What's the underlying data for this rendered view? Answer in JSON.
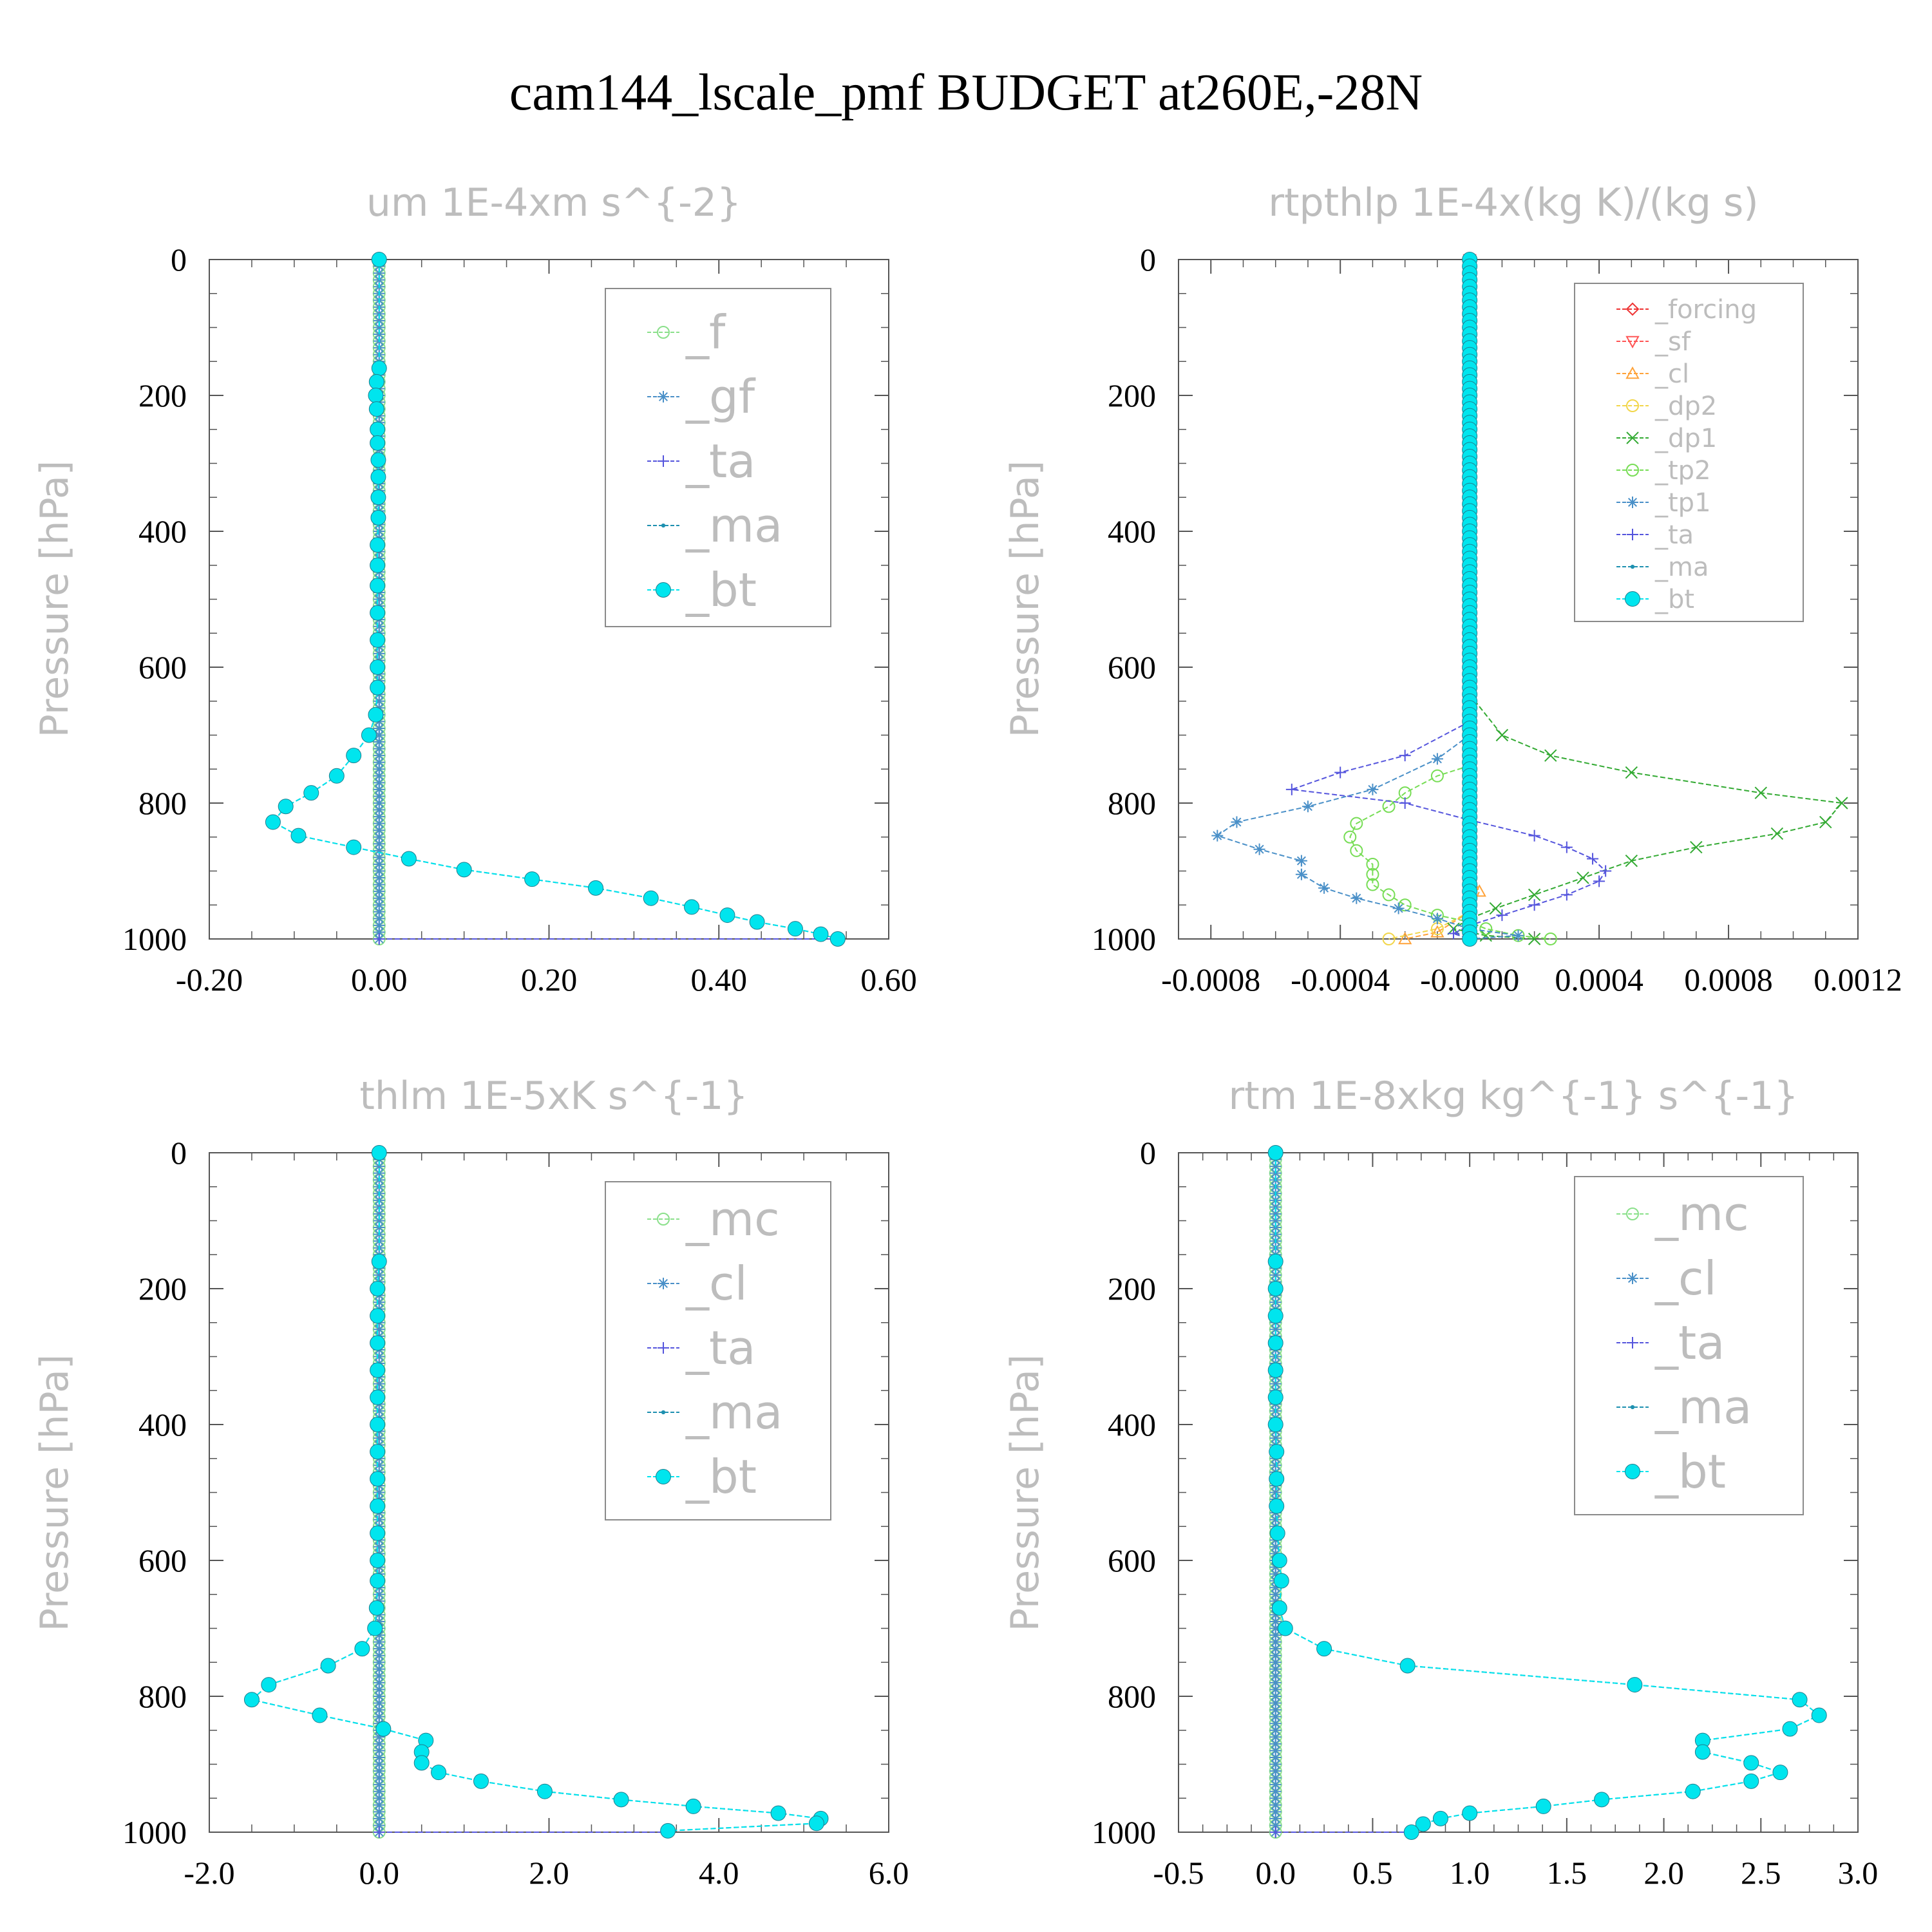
{
  "title": "cam144_lscale_pmf  BUDGET at260E,-28N",
  "ylabel": "Pressure [hPa]",
  "colors": {
    "f": "#8be08b",
    "gf": "#4a90c8",
    "ta": "#5555dd",
    "ma": "#1e90b0",
    "bt": "#00e5ee",
    "mc": "#8be08b",
    "cl_blue": "#4a90c8",
    "forcing": "#ee3333",
    "sf": "#ff5555",
    "cl": "#ffa33a",
    "dp2": "#f2d64a",
    "dp1": "#33aa33",
    "tp2": "#77dd55",
    "tp1": "#4a90c8"
  },
  "chart_data": [
    {
      "type": "line",
      "title": "um  1E-4xm s^{-2}",
      "ylabel": "Pressure [hPa]",
      "xlim": [
        -0.2,
        0.6
      ],
      "ylim": [
        1000,
        0
      ],
      "xticks": [
        "-0.20",
        "0.00",
        "0.20",
        "0.40",
        "0.60"
      ],
      "yticks": [
        "0",
        "200",
        "400",
        "600",
        "800",
        "1000"
      ],
      "legend_pos": "top-right",
      "series": [
        {
          "name": "_f",
          "marker": "circle-open",
          "key": "f",
          "values": "zero"
        },
        {
          "name": "_gf",
          "marker": "star",
          "key": "gf",
          "values": "zero"
        },
        {
          "name": "_ta",
          "marker": "plus",
          "key": "ta",
          "points": [
            [
              0,
              1000
            ],
            [
              0.54,
              1000
            ]
          ]
        },
        {
          "name": "_ma",
          "marker": "dot",
          "key": "ma",
          "values": "follow_bt"
        },
        {
          "name": "_bt",
          "marker": "circle-filled",
          "key": "bt",
          "points": [
            [
              0,
              0
            ],
            [
              0,
              160
            ],
            [
              -0.003,
              180
            ],
            [
              -0.004,
              200
            ],
            [
              -0.003,
              220
            ],
            [
              -0.002,
              250
            ],
            [
              -0.002,
              270
            ],
            [
              -0.001,
              295
            ],
            [
              -0.001,
              320
            ],
            [
              -0.001,
              350
            ],
            [
              -0.001,
              380
            ],
            [
              -0.002,
              420
            ],
            [
              -0.002,
              450
            ],
            [
              -0.002,
              480
            ],
            [
              -0.002,
              520
            ],
            [
              -0.002,
              560
            ],
            [
              -0.002,
              600
            ],
            [
              -0.002,
              630
            ],
            [
              -0.004,
              670
            ],
            [
              -0.012,
              700
            ],
            [
              -0.03,
              730
            ],
            [
              -0.05,
              760
            ],
            [
              -0.08,
              785
            ],
            [
              -0.11,
              805
            ],
            [
              -0.125,
              828
            ],
            [
              -0.095,
              848
            ],
            [
              -0.03,
              865
            ],
            [
              0.035,
              882
            ],
            [
              0.1,
              898
            ],
            [
              0.18,
              912
            ],
            [
              0.255,
              925
            ],
            [
              0.32,
              940
            ],
            [
              0.368,
              953
            ],
            [
              0.41,
              965
            ],
            [
              0.445,
              975
            ],
            [
              0.49,
              985
            ],
            [
              0.52,
              993
            ],
            [
              0.54,
              1000
            ]
          ]
        }
      ]
    },
    {
      "type": "line",
      "title": "rtpthlp  1E-4x(kg K)/(kg s)",
      "ylabel": "Pressure [hPa]",
      "xlim": [
        -0.0009,
        0.0012
      ],
      "ylim": [
        1000,
        0
      ],
      "xticks": [
        "-0.0008",
        "-0.0004",
        "-0.0000",
        "0.0004",
        "0.0008",
        "0.0012"
      ],
      "xtick_values": [
        -0.0008,
        -0.0004,
        0.0,
        0.0004,
        0.0008,
        0.0012
      ],
      "yticks": [
        "0",
        "200",
        "400",
        "600",
        "800",
        "1000"
      ],
      "legend_pos": "top-right",
      "series": [
        {
          "name": "_forcing",
          "marker": "diamond",
          "key": "forcing",
          "values": "zero"
        },
        {
          "name": "_sf",
          "marker": "tri-down",
          "key": "sf",
          "values": "zero"
        },
        {
          "name": "_cl",
          "marker": "tri-up",
          "key": "cl",
          "points": [
            [
              0,
              900
            ],
            [
              3e-05,
              930
            ],
            [
              0,
              960
            ],
            [
              -0.0001,
              990
            ],
            [
              -0.0002,
              1000
            ]
          ]
        },
        {
          "name": "_dp2",
          "marker": "circle-open",
          "key": "dp2",
          "points": [
            [
              0,
              960
            ],
            [
              -0.0001,
              985
            ],
            [
              -0.00025,
              1000
            ]
          ]
        },
        {
          "name": "_dp1",
          "marker": "cross",
          "key": "dp1",
          "points": [
            [
              0,
              640
            ],
            [
              0.0001,
              700
            ],
            [
              0.00025,
              730
            ],
            [
              0.0005,
              755
            ],
            [
              0.0009,
              785
            ],
            [
              0.00115,
              800
            ],
            [
              0.0011,
              828
            ],
            [
              0.00095,
              845
            ],
            [
              0.0007,
              865
            ],
            [
              0.0005,
              885
            ],
            [
              0.00035,
              910
            ],
            [
              0.0002,
              935
            ],
            [
              8e-05,
              955
            ],
            [
              0,
              970
            ],
            [
              -5e-05,
              985
            ],
            [
              5e-05,
              995
            ],
            [
              0.0002,
              1000
            ]
          ]
        },
        {
          "name": "_tp2",
          "marker": "circle-open",
          "key": "tp2",
          "points": [
            [
              0,
              745
            ],
            [
              -0.0001,
              760
            ],
            [
              -0.0002,
              785
            ],
            [
              -0.00025,
              805
            ],
            [
              -0.00035,
              830
            ],
            [
              -0.00037,
              850
            ],
            [
              -0.00035,
              870
            ],
            [
              -0.0003,
              890
            ],
            [
              -0.0003,
              905
            ],
            [
              -0.0003,
              920
            ],
            [
              -0.00025,
              935
            ],
            [
              -0.0002,
              950
            ],
            [
              -0.0001,
              965
            ],
            [
              0,
              975
            ],
            [
              5e-05,
              985
            ],
            [
              0.00015,
              995
            ],
            [
              0.00025,
              1000
            ]
          ]
        },
        {
          "name": "_tp1",
          "marker": "star",
          "key": "tp1",
          "points": [
            [
              0,
              700
            ],
            [
              -0.0001,
              735
            ],
            [
              -0.0003,
              780
            ],
            [
              -0.0005,
              805
            ],
            [
              -0.00072,
              828
            ],
            [
              -0.00078,
              848
            ],
            [
              -0.00065,
              868
            ],
            [
              -0.00052,
              885
            ],
            [
              -0.00052,
              905
            ],
            [
              -0.00045,
              925
            ],
            [
              -0.00035,
              940
            ],
            [
              -0.00022,
              955
            ],
            [
              -0.0001,
              970
            ],
            [
              0,
              985
            ],
            [
              0.00015,
              995
            ],
            [
              0,
              1000
            ]
          ]
        },
        {
          "name": "_ta",
          "marker": "plus",
          "key": "ta",
          "points": [
            [
              0,
              680
            ],
            [
              -0.0002,
              730
            ],
            [
              -0.0004,
              755
            ],
            [
              -0.00055,
              780
            ],
            [
              -0.0002,
              800
            ],
            [
              0,
              825
            ],
            [
              0.0002,
              848
            ],
            [
              0.0003,
              865
            ],
            [
              0.00038,
              882
            ],
            [
              0.00042,
              900
            ],
            [
              0.0004,
              915
            ],
            [
              0.0003,
              935
            ],
            [
              0.0002,
              950
            ],
            [
              0.0001,
              965
            ],
            [
              0,
              980
            ],
            [
              -5e-05,
              992
            ],
            [
              0,
              1000
            ]
          ]
        },
        {
          "name": "_ma",
          "marker": "dot",
          "key": "ma",
          "values": "zero"
        },
        {
          "name": "_bt",
          "marker": "circle-filled",
          "key": "bt",
          "values": "zero"
        }
      ]
    },
    {
      "type": "line",
      "title": "thlm  1E-5xK s^{-1}",
      "ylabel": "Pressure [hPa]",
      "xlim": [
        -2.0,
        6.0
      ],
      "ylim": [
        1000,
        0
      ],
      "xticks": [
        "-2.0",
        "0.0",
        "2.0",
        "4.0",
        "6.0"
      ],
      "yticks": [
        "0",
        "200",
        "400",
        "600",
        "800",
        "1000"
      ],
      "legend_pos": "top-right",
      "series": [
        {
          "name": "_mc",
          "marker": "circle-open",
          "key": "mc",
          "values": "zero"
        },
        {
          "name": "_cl",
          "marker": "star",
          "key": "cl_blue",
          "values": "zero"
        },
        {
          "name": "_ta",
          "marker": "plus",
          "key": "ta",
          "points": [
            [
              0,
              1000
            ],
            [
              3.4,
              1000
            ]
          ]
        },
        {
          "name": "_ma",
          "marker": "dot",
          "key": "ma",
          "values": "follow_bt"
        },
        {
          "name": "_bt",
          "marker": "circle-filled",
          "key": "bt",
          "points": [
            [
              0,
              0
            ],
            [
              0,
              160
            ],
            [
              -0.02,
              200
            ],
            [
              -0.02,
              240
            ],
            [
              -0.02,
              280
            ],
            [
              -0.02,
              320
            ],
            [
              -0.02,
              360
            ],
            [
              -0.02,
              400
            ],
            [
              -0.02,
              440
            ],
            [
              -0.02,
              480
            ],
            [
              -0.02,
              520
            ],
            [
              -0.02,
              560
            ],
            [
              -0.02,
              600
            ],
            [
              -0.02,
              630
            ],
            [
              -0.03,
              670
            ],
            [
              -0.05,
              700
            ],
            [
              -0.2,
              730
            ],
            [
              -0.6,
              755
            ],
            [
              -1.3,
              783
            ],
            [
              -1.5,
              805
            ],
            [
              -0.7,
              828
            ],
            [
              0.05,
              848
            ],
            [
              0.55,
              865
            ],
            [
              0.5,
              882
            ],
            [
              0.5,
              898
            ],
            [
              0.7,
              912
            ],
            [
              1.2,
              925
            ],
            [
              1.95,
              940
            ],
            [
              2.85,
              952
            ],
            [
              3.7,
              962
            ],
            [
              4.7,
              972
            ],
            [
              5.2,
              980
            ],
            [
              5.15,
              987
            ],
            [
              3.4,
              998
            ]
          ]
        }
      ]
    },
    {
      "type": "line",
      "title": "rtm  1E-8xkg kg^{-1} s^{-1}",
      "ylabel": "Pressure [hPa]",
      "xlim": [
        -0.5,
        3.0
      ],
      "ylim": [
        1000,
        0
      ],
      "xticks": [
        "-0.5",
        "0.0",
        "0.5",
        "1.0",
        "1.5",
        "2.0",
        "2.5",
        "3.0"
      ],
      "yticks": [
        "0",
        "200",
        "400",
        "600",
        "800",
        "1000"
      ],
      "legend_pos": "top-right",
      "series": [
        {
          "name": "_mc",
          "marker": "circle-open",
          "key": "mc",
          "values": "zero"
        },
        {
          "name": "_cl",
          "marker": "star",
          "key": "cl_blue",
          "values": "zero"
        },
        {
          "name": "_ta",
          "marker": "plus",
          "key": "ta",
          "points": [
            [
              0,
              1000
            ],
            [
              0.7,
              1000
            ]
          ]
        },
        {
          "name": "_ma",
          "marker": "dot",
          "key": "ma",
          "values": "follow_bt"
        },
        {
          "name": "_bt",
          "marker": "circle-filled",
          "key": "bt",
          "points": [
            [
              0,
              0
            ],
            [
              0,
              160
            ],
            [
              0,
              200
            ],
            [
              0,
              240
            ],
            [
              0,
              280
            ],
            [
              0,
              320
            ],
            [
              0,
              360
            ],
            [
              0,
              400
            ],
            [
              0.005,
              440
            ],
            [
              0.005,
              480
            ],
            [
              0.005,
              520
            ],
            [
              0.01,
              560
            ],
            [
              0.02,
              600
            ],
            [
              0.03,
              630
            ],
            [
              0.02,
              670
            ],
            [
              0.05,
              700
            ],
            [
              0.25,
              730
            ],
            [
              0.68,
              755
            ],
            [
              1.85,
              783
            ],
            [
              2.7,
              805
            ],
            [
              2.8,
              828
            ],
            [
              2.65,
              848
            ],
            [
              2.2,
              865
            ],
            [
              2.2,
              882
            ],
            [
              2.45,
              898
            ],
            [
              2.6,
              912
            ],
            [
              2.45,
              925
            ],
            [
              2.15,
              940
            ],
            [
              1.68,
              952
            ],
            [
              1.38,
              962
            ],
            [
              1.0,
              972
            ],
            [
              0.85,
              980
            ],
            [
              0.76,
              988
            ],
            [
              0.7,
              1000
            ]
          ]
        }
      ]
    }
  ]
}
